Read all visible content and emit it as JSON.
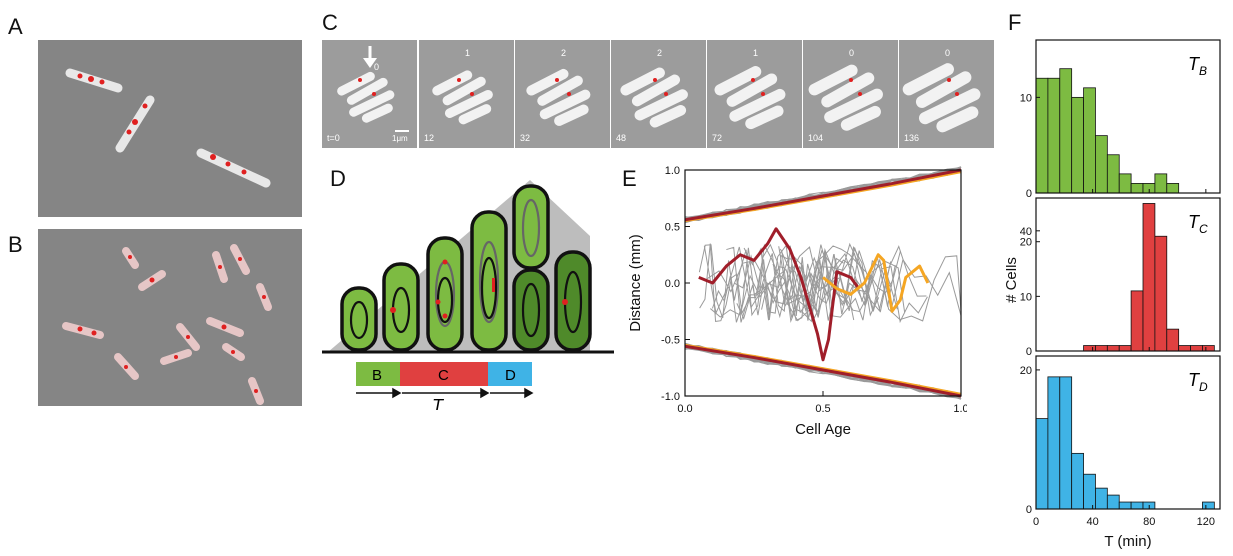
{
  "panels": {
    "a": "A",
    "b": "B",
    "c": "C",
    "d": "D",
    "e": "E",
    "f": "F"
  },
  "colors": {
    "B": "#7dbb42",
    "C": "#e04040",
    "D": "#3fb3e6",
    "dark_red": "#a01e2a",
    "orange": "#f5a623",
    "gray": "#9a9a9a"
  },
  "panel_c": {
    "times": [
      "t=0",
      "12",
      "32",
      "48",
      "72",
      "104",
      "136"
    ],
    "counts": [
      "0",
      "1",
      "2",
      "2",
      "1",
      "0",
      "0"
    ],
    "scale_bar": "1μm"
  },
  "panel_d": {
    "phases": [
      "B",
      "C",
      "D"
    ],
    "period": "T"
  },
  "chart_data": [
    {
      "type": "line",
      "panel": "E",
      "xlabel": "Cell Age",
      "ylabel": "Distance (mm)",
      "xlim": [
        0,
        1
      ],
      "ylim": [
        -1,
        1
      ],
      "xticks": [
        "0.0",
        "0.5",
        "1.0"
      ],
      "yticks": [
        "-1.0",
        "-0.5",
        "0.0",
        "0.5",
        "1.0"
      ],
      "series": [
        {
          "x": [
            0,
            0.25,
            0.5,
            0.75,
            1.0
          ],
          "y": [
            0.56,
            0.66,
            0.77,
            0.88,
            1.0
          ]
        },
        {
          "x": [
            0,
            0.25,
            0.5,
            0.75,
            1.0
          ],
          "y": [
            -0.56,
            -0.66,
            -0.77,
            -0.88,
            -1.0
          ]
        },
        {
          "x": [
            0.05,
            0.1,
            0.15,
            0.2,
            0.25,
            0.3,
            0.33,
            0.38,
            0.42,
            0.45,
            0.48,
            0.5,
            0.52,
            0.55,
            0.6,
            0.63
          ],
          "y": [
            0.05,
            0.0,
            0.15,
            0.25,
            0.2,
            0.35,
            0.48,
            0.3,
            0.05,
            -0.2,
            -0.45,
            -0.68,
            -0.5,
            0.1,
            0.05,
            -0.05
          ]
        },
        {
          "x": [
            0.5,
            0.55,
            0.6,
            0.65,
            0.7,
            0.72,
            0.75,
            0.78,
            0.8,
            0.85,
            0.88
          ],
          "y": [
            0.05,
            -0.05,
            -0.1,
            0.0,
            0.25,
            0.2,
            -0.25,
            -0.15,
            0.05,
            0.15,
            0.0
          ]
        }
      ]
    },
    {
      "type": "bar",
      "panel": "F",
      "ylabel": "# Cells",
      "xlabel": "T (min)",
      "xlim": [
        0,
        130
      ],
      "xticks": [
        "0",
        "40",
        "80",
        "120"
      ],
      "bin_width": 8.4,
      "subplots": [
        {
          "label": "T",
          "sub": "B",
          "ylim": [
            0,
            80
          ],
          "yticks": [
            "0",
            "10",
            "20",
            "40",
            "60",
            "80"
          ],
          "bin_starts": [
            0,
            8.4,
            16.8,
            25.2,
            33.6,
            42,
            50.4,
            58.8,
            67.2,
            75.6,
            84,
            92.4
          ],
          "values": [
            12,
            12,
            13,
            10,
            11,
            6,
            4,
            2,
            1,
            1,
            2,
            1
          ]
        },
        {
          "label": "T",
          "sub": "C",
          "ylim": [
            0,
            28
          ],
          "yticks": [
            "0",
            "10",
            "20"
          ],
          "bin_starts": [
            33.6,
            42,
            50.4,
            58.8,
            67.2,
            75.6,
            84,
            92.4,
            100.8,
            109.2,
            117.6
          ],
          "values": [
            1,
            1,
            1,
            1,
            11,
            27,
            21,
            4,
            1,
            1,
            1
          ]
        },
        {
          "label": "T",
          "sub": "D",
          "ylim": [
            0,
            20
          ],
          "yticks": [
            "0",
            "20",
            "40",
            "60",
            "80"
          ],
          "bin_starts": [
            0,
            8.4,
            16.8,
            25.2,
            33.6,
            42,
            50.4,
            58.8,
            67.2,
            75.6,
            117.6
          ],
          "values": [
            13,
            19,
            19,
            8,
            5,
            3,
            2,
            1,
            1,
            1,
            1
          ]
        }
      ]
    }
  ]
}
